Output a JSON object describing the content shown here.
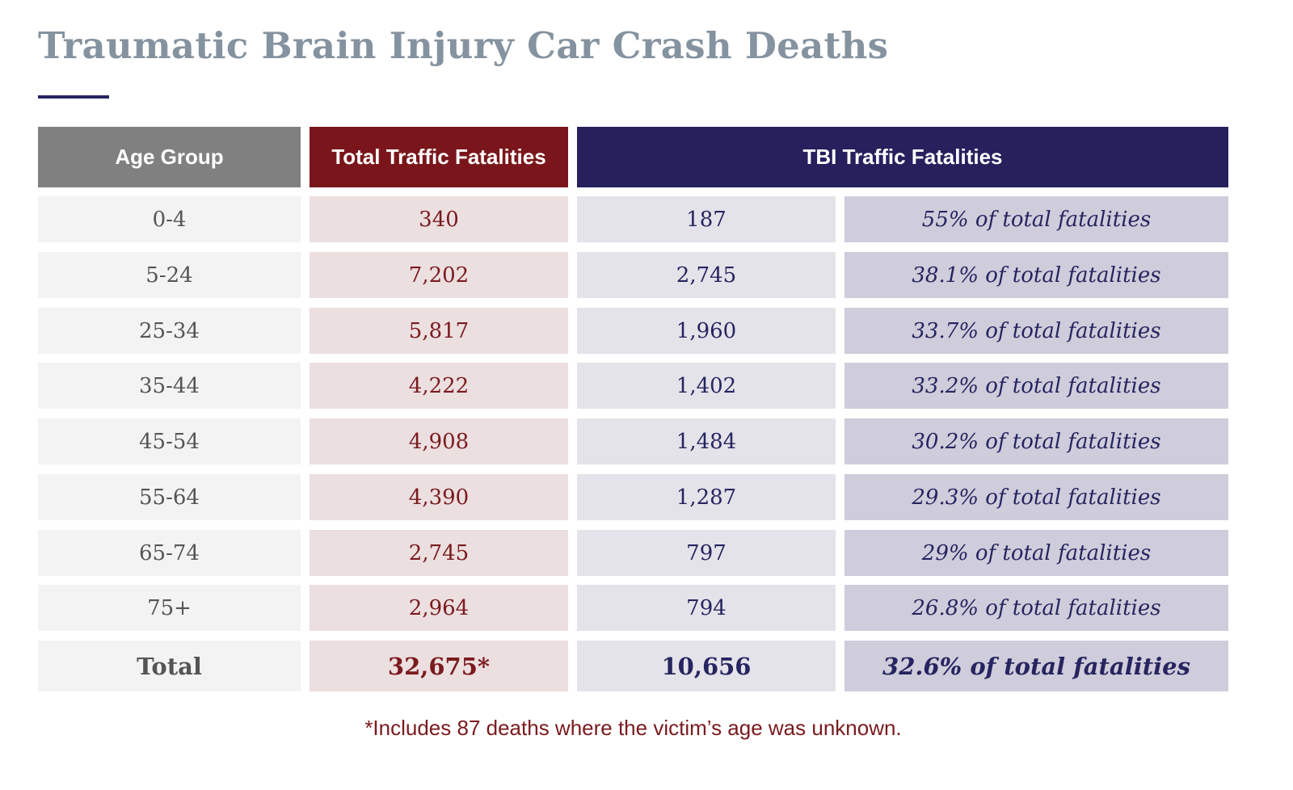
{
  "title": "Traumatic Brain Injury Car Crash Deaths",
  "colors": {
    "title": "#8593a0",
    "accent_bar": "#262560",
    "age_header": "#808080",
    "total_header": "#7a161b",
    "tbi_header": "#26205d"
  },
  "chart_data": {
    "type": "table",
    "title": "Traumatic Brain Injury Car Crash Deaths",
    "headers": [
      "Age Group",
      "Total Traffic Fatalities",
      "TBI Traffic Fatalities"
    ],
    "rows": [
      [
        "0-4",
        "340",
        "187",
        "55% of total fatalities"
      ],
      [
        "5-24",
        "7,202",
        "2,745",
        "38.1% of total fatalities"
      ],
      [
        "25-34",
        "5,817",
        "1,960",
        "33.7% of total fatalities"
      ],
      [
        "35-44",
        "4,222",
        "1,402",
        "33.2% of total fatalities"
      ],
      [
        "45-54",
        "4,908",
        "1,484",
        "30.2% of total fatalities"
      ],
      [
        "55-64",
        "4,390",
        "1,287",
        "29.3% of total fatalities"
      ],
      [
        "65-74",
        "2,745",
        "797",
        "29% of total fatalities"
      ],
      [
        "75+",
        "2,964",
        "794",
        "26.8% of total fatalities"
      ]
    ],
    "total": [
      "Total",
      "32,675*",
      "10,656",
      "32.6% of total fatalities"
    ],
    "footnote": "*Includes 87 deaths where the victim’s age was unknown."
  }
}
